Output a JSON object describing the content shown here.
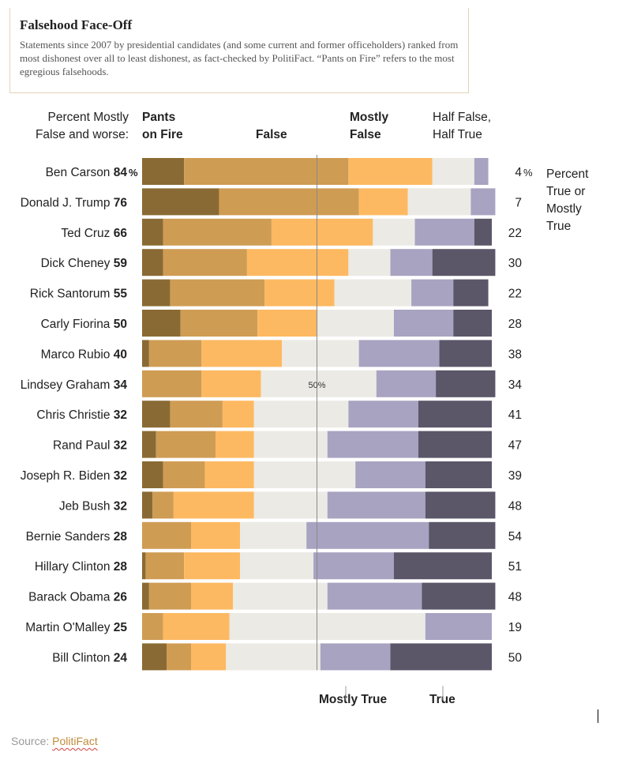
{
  "header": {
    "title": "Falsehood Face-Off",
    "subtitle": "Statements since 2007 by presidential candidates (and some current and former officeholders) ranked from most dishonest over all to least dishonest, as fact-checked by PolitiFact. “Pants on Fire” refers to the most egregious falsehoods."
  },
  "column_labels": {
    "left_line1": "Percent Mostly",
    "left_line2": "False and worse:",
    "pants_line1": "Pants",
    "pants_line2": "on Fire",
    "false": "False",
    "mostly_false_line1": "Mostly",
    "mostly_false_line2": "False",
    "half_line1": "Half False,",
    "half_line2": "Half True",
    "mostly_true": "Mostly True",
    "true": "True",
    "right_line1": "Percent",
    "right_line2": "True or",
    "right_line3": "Mostly",
    "right_line4": "True"
  },
  "source": {
    "prefix": "Source: ",
    "name": "PolitiFact"
  },
  "chart_data": {
    "type": "bar",
    "stacked": true,
    "orientation": "horizontal",
    "title": "Falsehood Face-Off",
    "midline_label": "50%",
    "xlim": [
      0,
      100
    ],
    "series": [
      {
        "name": "Pants on Fire",
        "color": "#8a6a34"
      },
      {
        "name": "False",
        "color": "#cf9c54"
      },
      {
        "name": "Mostly False",
        "color": "#fdb961"
      },
      {
        "name": "Half False, Half True",
        "color": "#ebeae4"
      },
      {
        "name": "Mostly True",
        "color": "#a8a3c1"
      },
      {
        "name": "True",
        "color": "#5b5668"
      }
    ],
    "rows": [
      {
        "name": "Ben Carson",
        "mostly_false_and_worse": "84",
        "suffix": "%",
        "true_or_mostly_true": "4",
        "right_suffix": "%",
        "values": [
          12,
          47,
          24,
          12,
          4,
          0
        ]
      },
      {
        "name": "Donald J. Trump",
        "mostly_false_and_worse": "76",
        "suffix": "",
        "true_or_mostly_true": "7",
        "right_suffix": "",
        "values": [
          22,
          40,
          14,
          18,
          7,
          0
        ]
      },
      {
        "name": "Ted Cruz",
        "mostly_false_and_worse": "66",
        "suffix": "",
        "true_or_mostly_true": "22",
        "right_suffix": "",
        "values": [
          6,
          31,
          29,
          12,
          17,
          5
        ]
      },
      {
        "name": "Dick Cheney",
        "mostly_false_and_worse": "59",
        "suffix": "",
        "true_or_mostly_true": "30",
        "right_suffix": "",
        "values": [
          6,
          24,
          29,
          12,
          12,
          18
        ]
      },
      {
        "name": "Rick Santorum",
        "mostly_false_and_worse": "55",
        "suffix": "",
        "true_or_mostly_true": "22",
        "right_suffix": "",
        "values": [
          8,
          27,
          20,
          22,
          12,
          10
        ]
      },
      {
        "name": "Carly Fiorina",
        "mostly_false_and_worse": "50",
        "suffix": "",
        "true_or_mostly_true": "28",
        "right_suffix": "",
        "values": [
          11,
          22,
          17,
          22,
          17,
          11
        ]
      },
      {
        "name": "Marco Rubio",
        "mostly_false_and_worse": "40",
        "suffix": "",
        "true_or_mostly_true": "38",
        "right_suffix": "",
        "values": [
          2,
          15,
          23,
          22,
          23,
          15
        ]
      },
      {
        "name": "Lindsey Graham",
        "mostly_false_and_worse": "34",
        "suffix": "",
        "true_or_mostly_true": "34",
        "right_suffix": "",
        "values": [
          0,
          17,
          17,
          33,
          17,
          17
        ]
      },
      {
        "name": "Chris Christie",
        "mostly_false_and_worse": "32",
        "suffix": "",
        "true_or_mostly_true": "41",
        "right_suffix": "",
        "values": [
          8,
          15,
          9,
          27,
          20,
          21
        ]
      },
      {
        "name": "Rand Paul",
        "mostly_false_and_worse": "32",
        "suffix": "",
        "true_or_mostly_true": "47",
        "right_suffix": "",
        "values": [
          4,
          17,
          11,
          21,
          26,
          21
        ]
      },
      {
        "name": "Joseph R. Biden",
        "mostly_false_and_worse": "32",
        "suffix": "",
        "true_or_mostly_true": "39",
        "right_suffix": "",
        "values": [
          6,
          12,
          14,
          29,
          20,
          19
        ]
      },
      {
        "name": "Jeb Bush",
        "mostly_false_and_worse": "32",
        "suffix": "",
        "true_or_mostly_true": "48",
        "right_suffix": "",
        "values": [
          3,
          6,
          23,
          21,
          28,
          20
        ]
      },
      {
        "name": "Bernie Sanders",
        "mostly_false_and_worse": "28",
        "suffix": "",
        "true_or_mostly_true": "54",
        "right_suffix": "",
        "values": [
          0,
          14,
          14,
          19,
          35,
          19
        ]
      },
      {
        "name": "Hillary Clinton",
        "mostly_false_and_worse": "28",
        "suffix": "",
        "true_or_mostly_true": "51",
        "right_suffix": "",
        "values": [
          1,
          11,
          16,
          21,
          23,
          28
        ]
      },
      {
        "name": "Barack Obama",
        "mostly_false_and_worse": "26",
        "suffix": "",
        "true_or_mostly_true": "48",
        "right_suffix": "",
        "values": [
          2,
          12,
          12,
          27,
          27,
          21
        ]
      },
      {
        "name": "Martin O'Malley",
        "mostly_false_and_worse": "25",
        "suffix": "",
        "true_or_mostly_true": "19",
        "right_suffix": "",
        "values": [
          0,
          6,
          19,
          56,
          19,
          0
        ]
      },
      {
        "name": "Bill Clinton",
        "mostly_false_and_worse": "24",
        "suffix": "",
        "true_or_mostly_true": "50",
        "right_suffix": "",
        "values": [
          7,
          7,
          10,
          27,
          20,
          29
        ]
      }
    ]
  }
}
